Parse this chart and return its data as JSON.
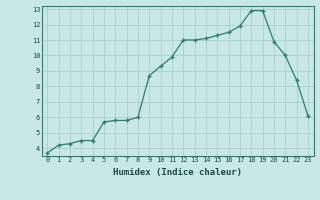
{
  "x": [
    0,
    1,
    2,
    3,
    4,
    5,
    6,
    7,
    8,
    9,
    10,
    11,
    12,
    13,
    14,
    15,
    16,
    17,
    18,
    19,
    20,
    21,
    22,
    23
  ],
  "y": [
    3.7,
    4.2,
    4.3,
    4.5,
    4.5,
    5.7,
    5.8,
    5.8,
    6.0,
    8.7,
    9.3,
    9.9,
    11.0,
    11.0,
    11.1,
    11.3,
    11.5,
    11.9,
    12.9,
    12.9,
    10.9,
    10.0,
    8.4,
    6.1
  ],
  "xlabel": "Humidex (Indice chaleur)",
  "ylabel": "",
  "xlim": [
    -0.5,
    23.5
  ],
  "ylim": [
    3.5,
    13.2
  ],
  "yticks": [
    4,
    5,
    6,
    7,
    8,
    9,
    10,
    11,
    12,
    13
  ],
  "xticks": [
    0,
    1,
    2,
    3,
    4,
    5,
    6,
    7,
    8,
    9,
    10,
    11,
    12,
    13,
    14,
    15,
    16,
    17,
    18,
    19,
    20,
    21,
    22,
    23
  ],
  "line_color": "#2e7d6e",
  "marker": "+",
  "bg_color": "#c8e8e8",
  "grid_color": "#aacece",
  "axis_label_color": "#1a4a40",
  "tick_color": "#1a4a40",
  "spine_color": "#2e7d6e"
}
